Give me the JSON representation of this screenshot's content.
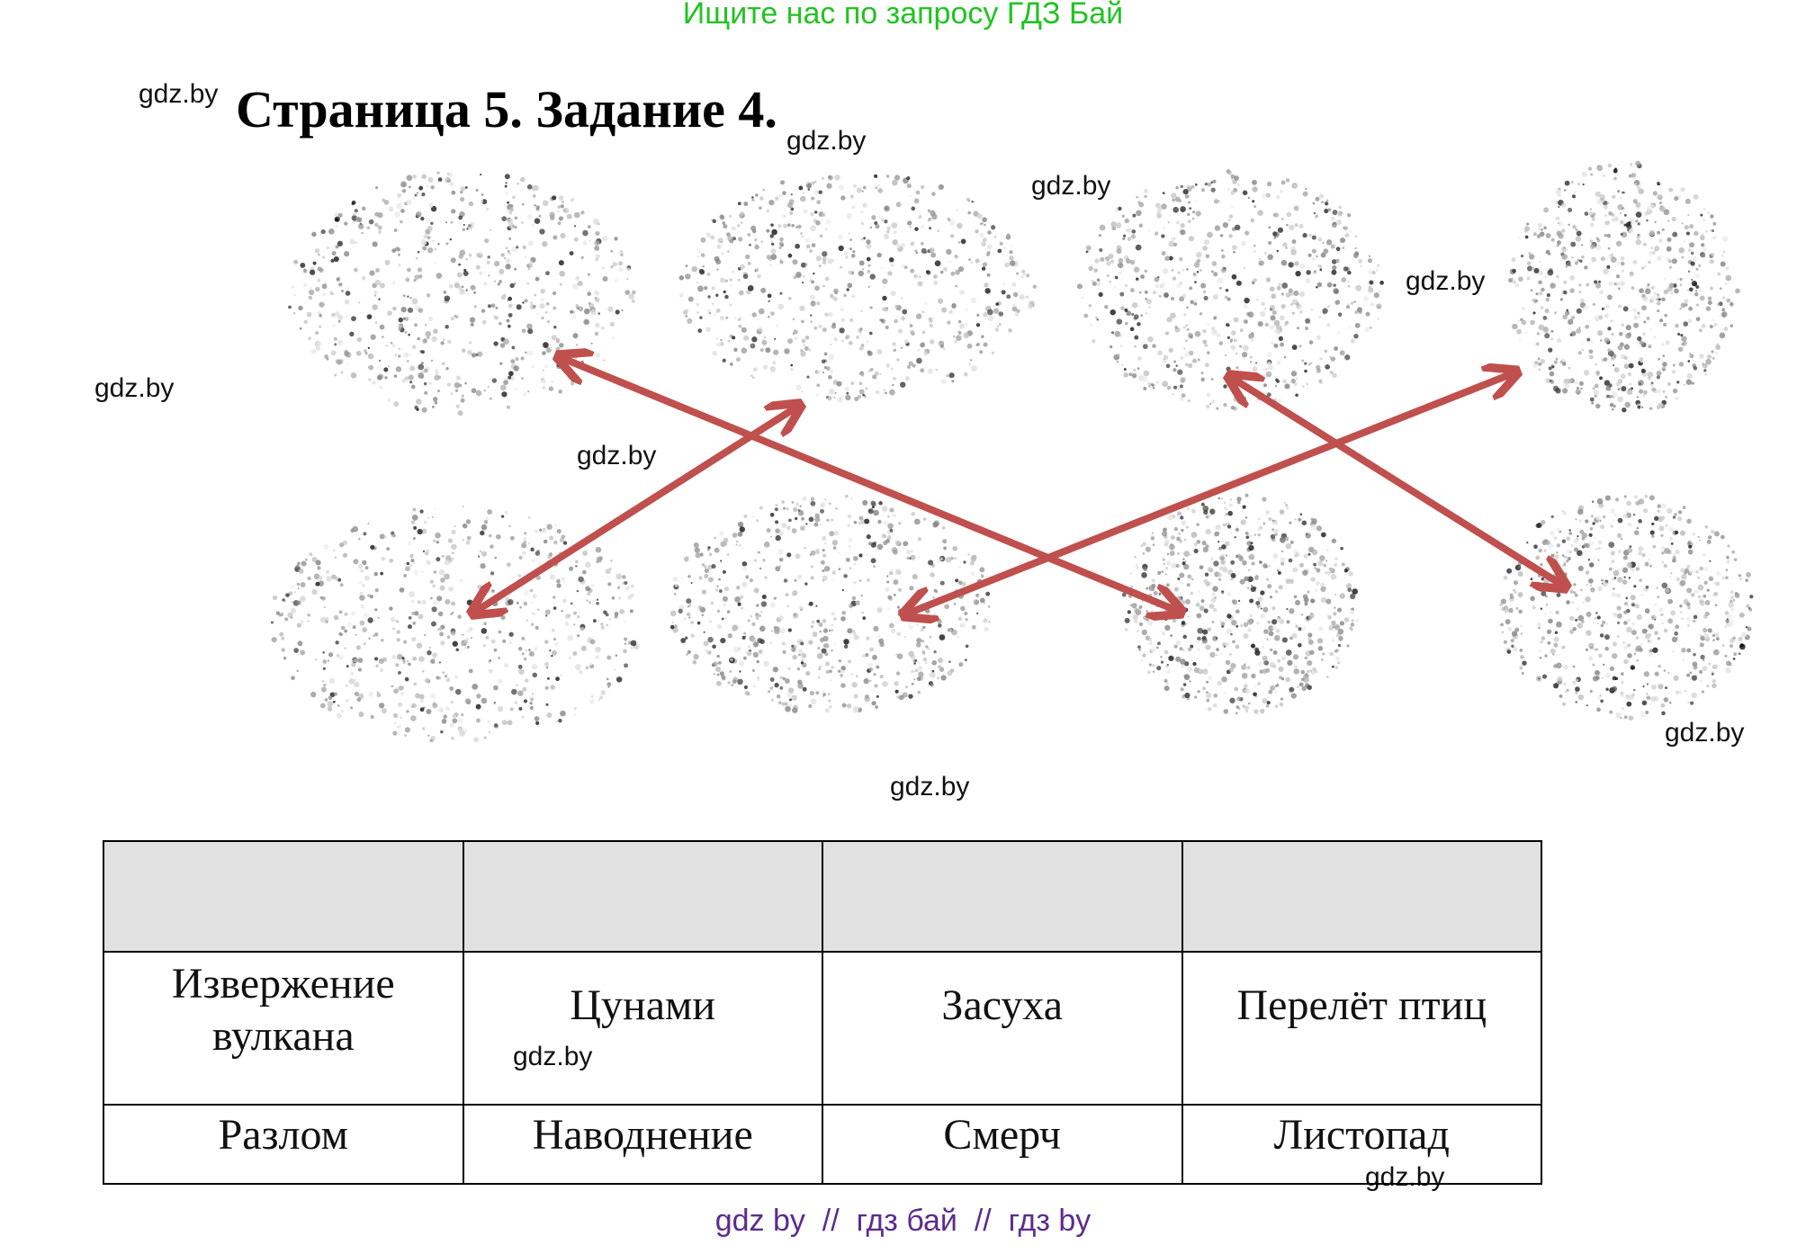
{
  "promo": "Ищите нас по запросу ГДЗ Бай",
  "title": "Страница 5. Задание 4.",
  "watermark": "gdz.by",
  "arrow_color": "#c0504d",
  "table": {
    "row1": [
      "Извержение вулкана",
      "Цунами",
      "Засуха",
      "Перелёт птиц"
    ],
    "row2": [
      "Разлом",
      "Наводнение",
      "Смерч",
      "Листопад"
    ]
  },
  "footer": "gdz by  //  гдз бай  //  гдз by"
}
